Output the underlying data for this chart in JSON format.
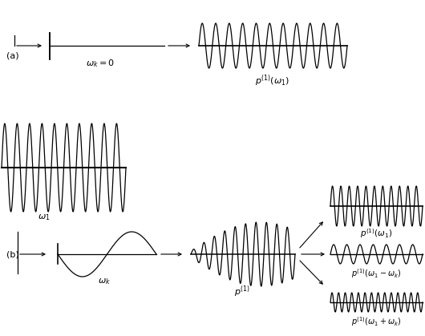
{
  "bg_color": "#ffffff",
  "line_color": "#000000",
  "fig_width": 5.3,
  "fig_height": 4.19,
  "dpi": 100,
  "label_a": "(a)",
  "label_b": "(b)"
}
